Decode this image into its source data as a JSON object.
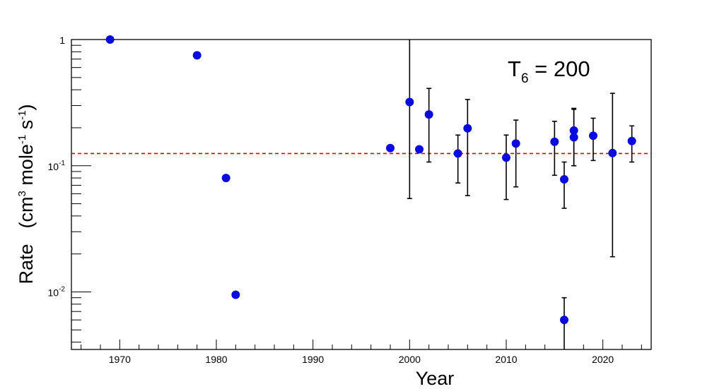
{
  "chart_data": {
    "type": "scatter",
    "title": "",
    "xlabel": "Year",
    "ylabel": "Rate    (cm3 mole-1 s-1)",
    "ylabel_parts": {
      "name": "Rate",
      "unit_open": "(cm",
      "unit_exp1": "3",
      "unit_mid": " mole",
      "unit_exp2": "-1",
      "unit_s": " s",
      "unit_exp3": "-1",
      "unit_close": ")"
    },
    "y_scale": "log",
    "xlim": [
      1965,
      2025
    ],
    "ylim": [
      0.0035,
      1
    ],
    "x_ticks": [
      1970,
      1980,
      1990,
      2000,
      2010,
      2020
    ],
    "y_tick_labels": [
      {
        "value": 1,
        "base": "1",
        "exp": ""
      },
      {
        "value": 0.1,
        "base": "10",
        "exp": "-1"
      },
      {
        "value": 0.01,
        "base": "10",
        "exp": "-2"
      }
    ],
    "grid": false,
    "marker_color": "#0a0adf",
    "reference_line": {
      "value": 0.125,
      "color": "#cc0000",
      "style": "dashed"
    },
    "annotation": {
      "base": "T",
      "sub": "6",
      "rest": " = 200"
    },
    "points": [
      {
        "x": 1969,
        "y": 1.0
      },
      {
        "x": 1978,
        "y": 0.75
      },
      {
        "x": 1981,
        "y": 0.08
      },
      {
        "x": 1982,
        "y": 0.0095
      },
      {
        "x": 1998,
        "y": 0.138
      },
      {
        "x": 2000,
        "y": 0.32,
        "err_low": 0.055,
        "err_high": 1.0
      },
      {
        "x": 2001,
        "y": 0.135
      },
      {
        "x": 2002,
        "y": 0.255,
        "err_low": 0.107,
        "err_high": 0.41
      },
      {
        "x": 2005,
        "y": 0.125,
        "err_low": 0.073,
        "err_high": 0.175
      },
      {
        "x": 2006,
        "y": 0.198,
        "err_low": 0.058,
        "err_high": 0.335
      },
      {
        "x": 2010,
        "y": 0.116,
        "err_low": 0.054,
        "err_high": 0.175
      },
      {
        "x": 2011,
        "y": 0.15,
        "err_low": 0.068,
        "err_high": 0.23
      },
      {
        "x": 2015,
        "y": 0.155,
        "err_low": 0.084,
        "err_high": 0.225
      },
      {
        "x": 2016,
        "y": 0.078,
        "err_low": 0.046,
        "err_high": 0.107
      },
      {
        "x": 2016,
        "y": 0.006,
        "err_low": 0.0035,
        "err_high": 0.009
      },
      {
        "x": 2017,
        "y": 0.19,
        "err_low": 0.1,
        "err_high": 0.285
      },
      {
        "x": 2017,
        "y": 0.168,
        "err_low": 0.1,
        "err_high": 0.28
      },
      {
        "x": 2019,
        "y": 0.173,
        "err_low": 0.11,
        "err_high": 0.238
      },
      {
        "x": 2021,
        "y": 0.126,
        "err_low": 0.019,
        "err_high": 0.375
      },
      {
        "x": 2023,
        "y": 0.157,
        "err_low": 0.107,
        "err_high": 0.207
      }
    ]
  }
}
